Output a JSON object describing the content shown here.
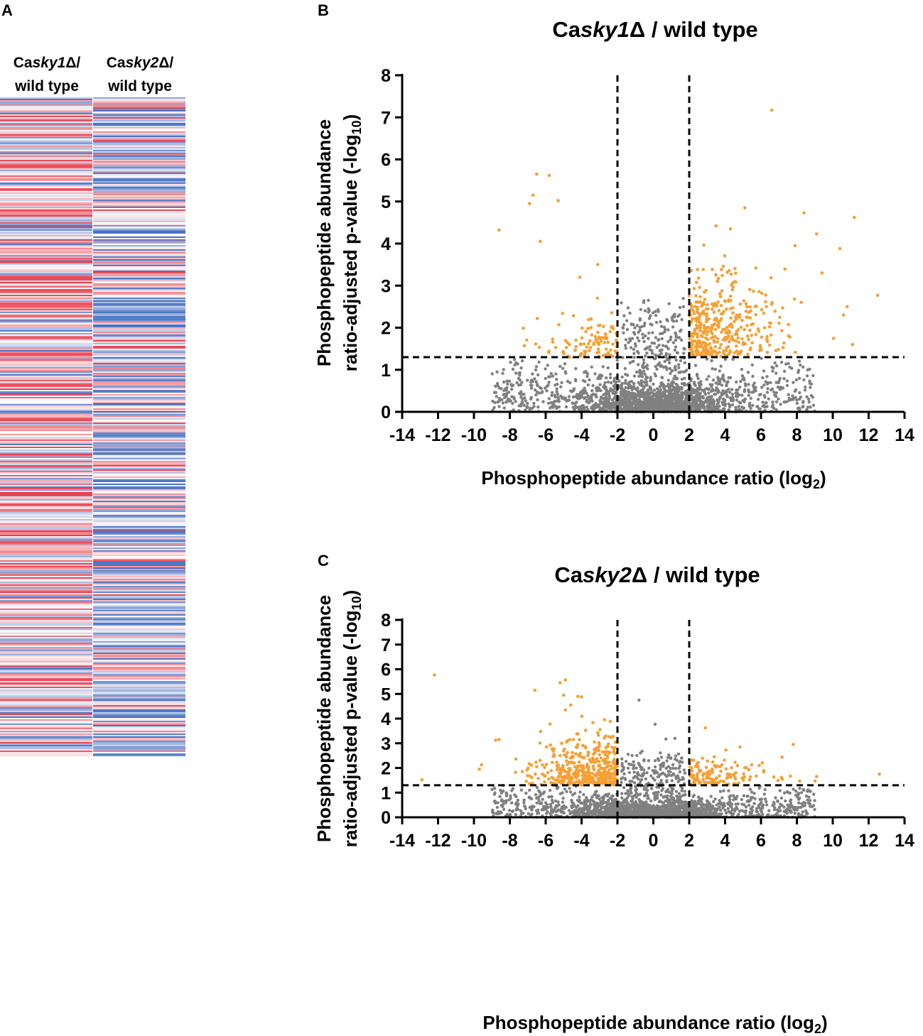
{
  "panels": {
    "a": {
      "letter": "A"
    },
    "b": {
      "letter": "B"
    },
    "c": {
      "letter": "C"
    }
  },
  "heatmap": {
    "columns": [
      {
        "label_line1_prefix": "Ca",
        "label_line1_italic": "sky1",
        "label_line1_suffix": "Δ/",
        "label_line2": "wild type"
      },
      {
        "label_line1_prefix": "Ca",
        "label_line1_italic": "sky2",
        "label_line1_suffix": "Δ/",
        "label_line2": "wild type"
      }
    ],
    "low_color": "#4a72c4",
    "mid_color": "#ffffff",
    "high_color": "#e8414f"
  },
  "colors": {
    "significant": "#f5a035",
    "nonsignificant": "#808080",
    "axis": "#000000"
  },
  "chart_data": [
    {
      "type": "scatter",
      "panel": "B",
      "title_prefix": "Ca",
      "title_italic": "sky1",
      "title_suffix": "Δ / wild type",
      "xlabel_main": "Phosphopeptide abundance ratio (log",
      "xlabel_sub": "2",
      "xlabel_end": ")",
      "ylabel_line1": "Phosphopeptide abundance",
      "ylabel_line2_main": "ratio-adjusted p-value (-log",
      "ylabel_line2_sub": "10",
      "ylabel_line2_end": ")",
      "xlim": [
        -14,
        14
      ],
      "ylim": [
        0,
        8
      ],
      "xticks": [
        -14,
        -12,
        -10,
        -8,
        -6,
        -4,
        -2,
        0,
        2,
        4,
        6,
        8,
        10,
        12,
        14
      ],
      "yticks": [
        0,
        1,
        2,
        3,
        4,
        5,
        6,
        7,
        8
      ],
      "fold_change_cutoffs": [
        -2,
        2
      ],
      "pvalue_cutoff": 1.3,
      "highlighted_points": [
        {
          "x": -6.5,
          "y": 5.65
        },
        {
          "x": -5.8,
          "y": 5.62
        },
        {
          "x": -6.7,
          "y": 5.15
        },
        {
          "x": -6.9,
          "y": 4.95
        },
        {
          "x": -5.3,
          "y": 5.02
        },
        {
          "x": -8.6,
          "y": 4.32
        },
        {
          "x": -6.3,
          "y": 4.05
        },
        {
          "x": -3.1,
          "y": 3.5
        },
        {
          "x": -4.1,
          "y": 3.2
        },
        {
          "x": 6.6,
          "y": 7.17
        },
        {
          "x": 5.1,
          "y": 4.85
        },
        {
          "x": 8.4,
          "y": 4.73
        },
        {
          "x": 11.2,
          "y": 4.62
        },
        {
          "x": 9.1,
          "y": 4.23
        },
        {
          "x": 10.4,
          "y": 3.88
        },
        {
          "x": 3.5,
          "y": 4.42
        },
        {
          "x": 4.3,
          "y": 4.35
        },
        {
          "x": 12.5,
          "y": 2.77
        },
        {
          "x": 10.8,
          "y": 2.5
        },
        {
          "x": 10.6,
          "y": 2.3
        },
        {
          "x": 9.4,
          "y": 3.3
        },
        {
          "x": 7.9,
          "y": 3.95
        },
        {
          "x": 11.1,
          "y": 1.6
        }
      ],
      "highlighted_count": 520,
      "background_count": 2200
    },
    {
      "type": "scatter",
      "panel": "C",
      "title_prefix": "Ca",
      "title_italic": "sky2",
      "title_suffix": "Δ / wild type",
      "xlabel_main": "Phosphopeptide abundance ratio (log",
      "xlabel_sub": "2",
      "xlabel_end": ")",
      "ylabel_line1": "Phosphopeptide abundance",
      "ylabel_line2_main": "ratio-adjusted p-value (-log",
      "ylabel_line2_sub": "10",
      "ylabel_line2_end": ")",
      "xlim": [
        -14,
        14
      ],
      "ylim": [
        0,
        8
      ],
      "xticks": [
        -14,
        -12,
        -10,
        -8,
        -6,
        -4,
        -2,
        0,
        2,
        4,
        6,
        8,
        10,
        12,
        14
      ],
      "yticks": [
        0,
        1,
        2,
        3,
        4,
        5,
        6,
        7,
        8
      ],
      "fold_change_cutoffs": [
        -2,
        2
      ],
      "pvalue_cutoff": 1.3,
      "highlighted_points": [
        {
          "x": -12.2,
          "y": 5.77
        },
        {
          "x": -4.9,
          "y": 5.57
        },
        {
          "x": -5.2,
          "y": 5.45
        },
        {
          "x": -6.6,
          "y": 5.15
        },
        {
          "x": -5.0,
          "y": 4.95
        },
        {
          "x": -4.2,
          "y": 4.9
        },
        {
          "x": -4.0,
          "y": 4.88
        },
        {
          "x": -4.6,
          "y": 4.55
        },
        {
          "x": -4.9,
          "y": 4.35
        },
        {
          "x": -12.9,
          "y": 1.52
        },
        {
          "x": -9.7,
          "y": 1.95
        },
        {
          "x": -8.6,
          "y": 3.15
        },
        {
          "x": 2.9,
          "y": 3.62
        },
        {
          "x": 7.8,
          "y": 2.95
        },
        {
          "x": 12.6,
          "y": 1.75
        },
        {
          "x": 9.1,
          "y": 1.65
        },
        {
          "x": 5.9,
          "y": 2.1
        },
        {
          "x": 3.4,
          "y": 2.45
        }
      ],
      "grey_outliers": [
        {
          "x": -0.8,
          "y": 4.75
        },
        {
          "x": 0.1,
          "y": 3.77
        },
        {
          "x": 1.2,
          "y": 3.2
        },
        {
          "x": 0.7,
          "y": 3.17
        }
      ],
      "highlighted_count": 560,
      "background_count": 2200
    }
  ]
}
